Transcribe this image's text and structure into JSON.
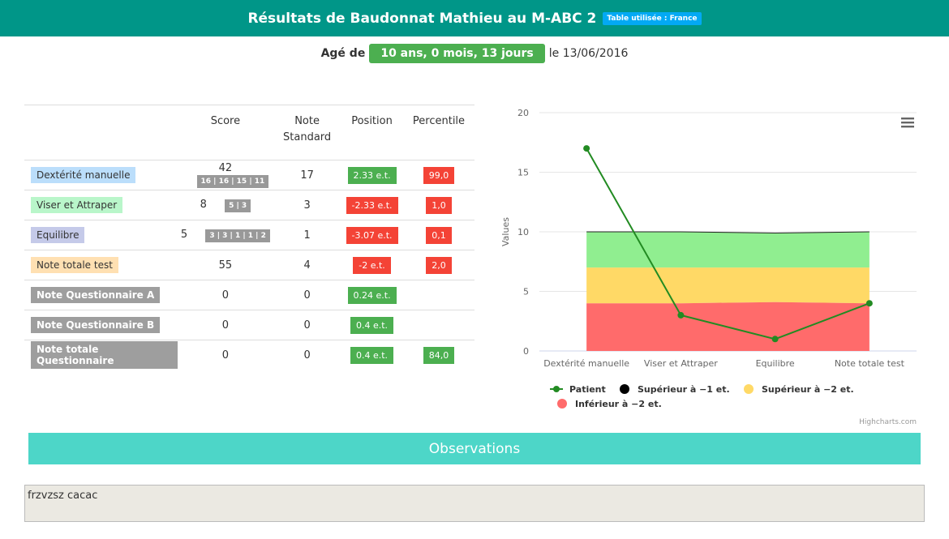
{
  "header": {
    "title": "Résultats de Baudonnat Mathieu au M-ABC 2",
    "table_badge": "Table utilisée : France"
  },
  "age": {
    "prefix": "Agé de",
    "value": "10 ans, 0 mois, 13 jours",
    "date": "le 13/06/2016"
  },
  "table": {
    "headers": {
      "score": "Score",
      "note_standard_1": "Note",
      "note_standard_2": "Standard",
      "position": "Position",
      "percentile": "Percentile"
    },
    "rows": [
      {
        "name": "Dextérité manuelle",
        "color": "#bbdefb",
        "score": "42",
        "sub": "16 | 16 | 15 | 11",
        "note": "17",
        "position": "2.33 e.t.",
        "position_color": "#4caf50",
        "percentile": "99,0",
        "percentile_color": "#f44336"
      },
      {
        "name": "Viser et Attraper",
        "color": "#b9f6ca",
        "score": "8",
        "sub": "5 | 3",
        "note": "3",
        "position": "-2.33 e.t.",
        "position_color": "#f44336",
        "percentile": "1,0",
        "percentile_color": "#f44336"
      },
      {
        "name": "Equilibre",
        "color": "#c5cae9",
        "score": "5",
        "sub": "3 | 3 | 1 | 1 | 2",
        "note": "1",
        "position": "-3.07 e.t.",
        "position_color": "#f44336",
        "percentile": "0,1",
        "percentile_color": "#f44336"
      },
      {
        "name": "Note totale test",
        "color": "#ffe0b2",
        "score": "55",
        "sub": "",
        "note": "4",
        "position": "-2 e.t.",
        "position_color": "#f44336",
        "percentile": "2,0",
        "percentile_color": "#f44336"
      },
      {
        "name": "Note Questionnaire A",
        "color": "#9e9e9e",
        "score": "0",
        "sub": "",
        "note": "0",
        "position": "0.24 e.t.",
        "position_color": "#4caf50",
        "percentile": "",
        "percentile_color": ""
      },
      {
        "name": "Note Questionnaire B",
        "color": "#9e9e9e",
        "score": "0",
        "sub": "",
        "note": "0",
        "position": "0.4 e.t.",
        "position_color": "#4caf50",
        "percentile": "",
        "percentile_color": ""
      },
      {
        "name": "Note totale Questionnaire",
        "color": "#9e9e9e",
        "score": "0",
        "sub": "",
        "note": "0",
        "position": "0.4 e.t.",
        "position_color": "#4caf50",
        "percentile": "84,0",
        "percentile_color": "#4caf50"
      }
    ]
  },
  "chart_data": {
    "type": "line",
    "categories": [
      "Dextérité manuelle",
      "Viser et Attraper",
      "Equilibre",
      "Note totale test"
    ],
    "ylabel": "Values",
    "ylim": [
      0,
      20
    ],
    "yticks": [
      0,
      5,
      10,
      15,
      20
    ],
    "grid": true,
    "legend_position": "bottom",
    "series": [
      {
        "name": "Patient",
        "kind": "line",
        "color": "#228b22",
        "values": [
          17,
          3,
          1,
          4
        ]
      },
      {
        "name": "Supérieur à −1 et.",
        "kind": "area",
        "color": "#000000",
        "values": [
          10,
          10,
          9.9,
          10
        ]
      },
      {
        "name": "Supérieur à −2 et.",
        "kind": "area",
        "color": "#ffd966",
        "values": [
          7,
          7,
          7,
          7
        ]
      },
      {
        "name": "Inférieur à −2 et.",
        "kind": "area",
        "color": "#ff6b6b",
        "values": [
          4,
          4,
          4.1,
          4
        ]
      }
    ],
    "band_green_color": "#90ee90",
    "credits": "Highcharts.com"
  },
  "observations": {
    "title": "Observations",
    "text": "frzvzsz cacac"
  }
}
